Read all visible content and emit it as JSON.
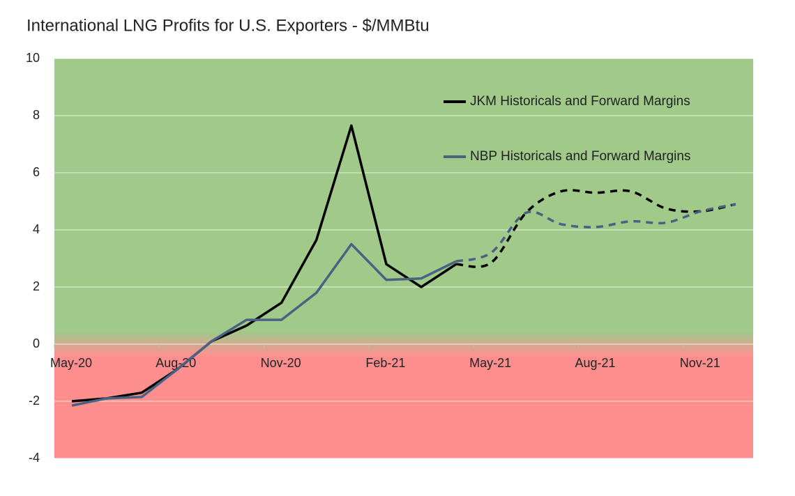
{
  "chart_data": {
    "type": "line",
    "title": "International LNG Profits for U.S. Exporters - $/MMBtu",
    "x": [
      0.5,
      1.5,
      2.5,
      3.5,
      4.5,
      5.5,
      6.5,
      7.5,
      8.5,
      9.5,
      10.5,
      11.5,
      12.5,
      13.5,
      14.5,
      15.5,
      16.5,
      17.5,
      18.5,
      19.5
    ],
    "series": [
      {
        "name": "JKM Historicals and Forward Margins",
        "color": "#000000",
        "values": [
          -2.0,
          -1.9,
          -1.7,
          -0.9,
          0.1,
          0.65,
          1.45,
          3.65,
          7.65,
          2.8,
          2.0,
          2.8,
          2.85,
          4.6,
          5.35,
          5.3,
          5.35,
          4.75,
          4.65,
          4.9
        ]
      },
      {
        "name": "NBP Historicals and Forward Margins",
        "color": "#4a6282",
        "values": [
          -2.15,
          -1.9,
          -1.85,
          -0.9,
          0.1,
          0.85,
          0.85,
          1.8,
          3.5,
          2.25,
          2.3,
          2.9,
          3.2,
          4.6,
          4.2,
          4.1,
          4.3,
          4.25,
          4.65,
          4.9
        ]
      }
    ],
    "dashed_from": 11,
    "xlim": [
      0,
      20
    ],
    "xticks": [
      {
        "value": 0,
        "label": "May-20"
      },
      {
        "value": 3,
        "label": "Aug-20"
      },
      {
        "value": 6,
        "label": "Nov-20"
      },
      {
        "value": 9,
        "label": "Feb-21"
      },
      {
        "value": 12,
        "label": "May-21"
      },
      {
        "value": 15,
        "label": "Aug-21"
      },
      {
        "value": 18,
        "label": "Nov-21"
      }
    ],
    "ylim": [
      -4,
      10
    ],
    "yticks": [
      -4,
      -2,
      0,
      2,
      4,
      6,
      8,
      10
    ],
    "grid": true,
    "positive_color": "#a0c98a",
    "negative_color": "#ff8f8f",
    "legend": "upper right"
  }
}
